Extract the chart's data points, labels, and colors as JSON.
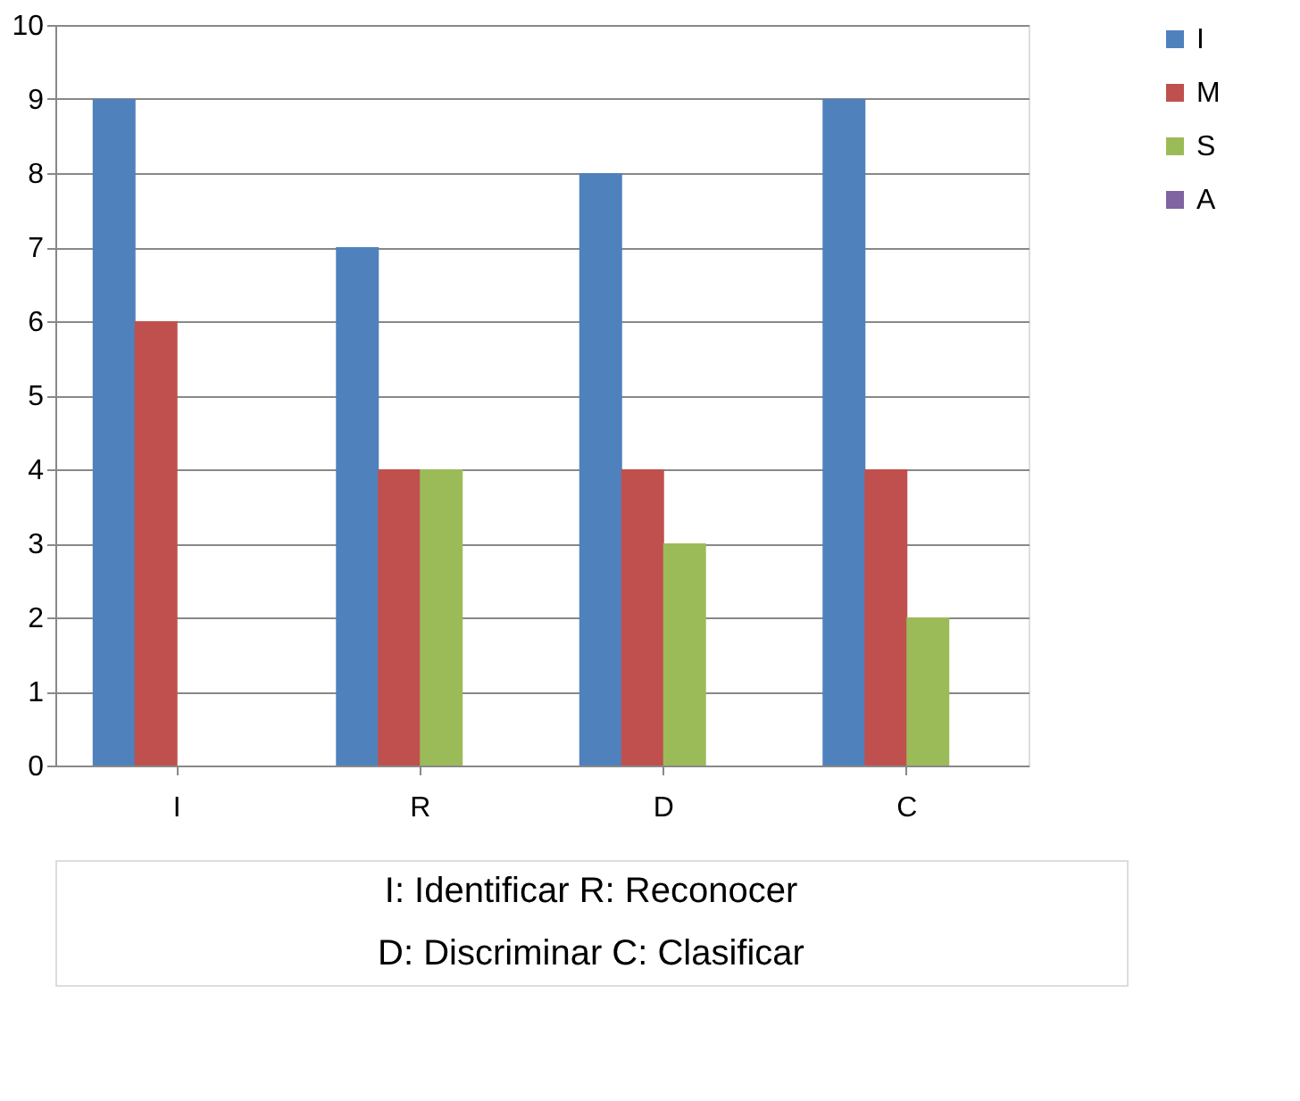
{
  "chart_data": {
    "type": "bar",
    "categories": [
      "I",
      "R",
      "D",
      "C"
    ],
    "series": [
      {
        "name": "I",
        "color": "#4f81bd",
        "values": [
          9,
          7,
          8,
          9
        ]
      },
      {
        "name": "M",
        "color": "#c0504d",
        "values": [
          6,
          4,
          4,
          4
        ]
      },
      {
        "name": "S",
        "color": "#9bbb59",
        "values": [
          0,
          4,
          3,
          2
        ]
      },
      {
        "name": "A",
        "color": "#8064a2",
        "values": [
          0,
          0,
          0,
          0
        ]
      }
    ],
    "ylim": [
      0,
      10
    ],
    "yticks": [
      0,
      1,
      2,
      3,
      4,
      5,
      6,
      7,
      8,
      9,
      10
    ],
    "grid": "y",
    "legend": "right",
    "annotations": [
      "I: Identificar          R: Reconocer",
      "D: Discriminar        C: Clasificar"
    ]
  }
}
